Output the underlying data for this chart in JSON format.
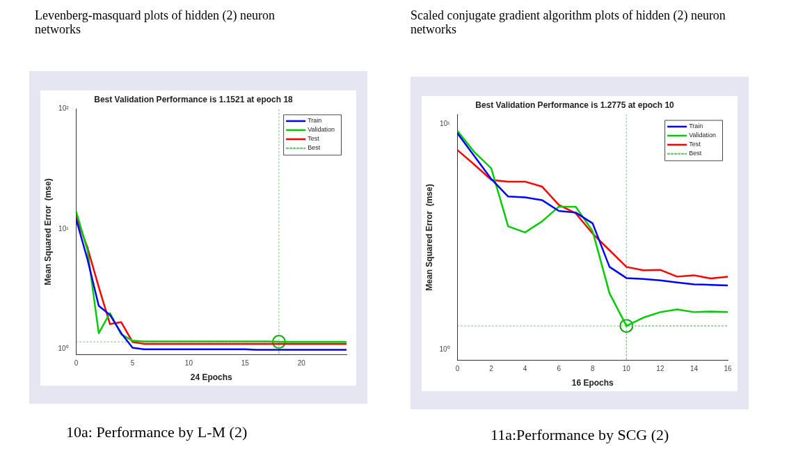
{
  "chart_data": [
    {
      "type": "line",
      "title": "Best Validation Performance is 1.1521 at epoch 18",
      "xlabel": "24 Epochs",
      "ylabel": "Mean Squared Error  (mse)",
      "annotations": [
        "Levenberg-masquard plots of  hidden (2)  neuron networks",
        "10a: Performance by L-M (2)"
      ],
      "x": [
        0,
        1,
        2,
        3,
        4,
        5,
        6,
        7,
        8,
        9,
        10,
        11,
        12,
        13,
        14,
        15,
        16,
        17,
        18,
        19,
        20,
        21,
        22,
        23,
        24
      ],
      "series": [
        {
          "name": "Train",
          "color": "#0000ff",
          "values": [
            12,
            5.6,
            2.3,
            1.93,
            1.36,
            1.03,
            1.0,
            1.0,
            1.0,
            1.0,
            1.0,
            1.0,
            1.0,
            1.0,
            1.0,
            1.0,
            0.99,
            0.99,
            0.99,
            0.99,
            0.99,
            0.99,
            0.99,
            0.99,
            0.99
          ]
        },
        {
          "name": "Validation",
          "color": "#00cc00",
          "values": [
            13.9,
            6.7,
            1.36,
            2.0,
            1.33,
            1.18,
            1.16,
            1.16,
            1.16,
            1.16,
            1.16,
            1.16,
            1.16,
            1.16,
            1.16,
            1.16,
            1.16,
            1.16,
            1.1521,
            1.15,
            1.15,
            1.15,
            1.15,
            1.15,
            1.15
          ]
        },
        {
          "name": "Test",
          "color": "#ff0000",
          "values": [
            12.6,
            7.0,
            3.3,
            1.62,
            1.68,
            1.15,
            1.11,
            1.11,
            1.11,
            1.11,
            1.11,
            1.11,
            1.11,
            1.11,
            1.11,
            1.11,
            1.11,
            1.11,
            1.11,
            1.11,
            1.11,
            1.11,
            1.11,
            1.11,
            1.11
          ]
        },
        {
          "name": "Best",
          "color": "#7fbf7f",
          "line_style": "dotted",
          "x": [
            0,
            18,
            18,
            18
          ],
          "values": [
            1.1521,
            1.1521,
            0.9,
            100
          ]
        },
        {
          "type": "scatter",
          "marker": "circle",
          "color": "#00aa00",
          "x": [
            18
          ],
          "values": [
            1.1521
          ]
        }
      ],
      "log": "y",
      "xlim": [
        0,
        24
      ],
      "xticks": [
        0,
        5,
        10,
        15,
        20
      ],
      "ylim": [
        0.9,
        100
      ],
      "yticks": [
        {
          "value": 1,
          "label": "10⁰"
        },
        {
          "value": 10,
          "label": "10¹"
        },
        {
          "value": 100,
          "label": "10²"
        }
      ],
      "legend": "top right"
    },
    {
      "type": "line",
      "title": "Best Validation Performance is 1.2775 at epoch 10",
      "xlabel": "16 Epochs",
      "ylabel": "Mean Squared Error  (mse)",
      "annotations": [
        "Scaled conjugate gradient algorithm plots of hidden (2) neuron networks",
        "11a:Performance by SCG (2)"
      ],
      "x": [
        0,
        1,
        2,
        3,
        4,
        5,
        6,
        7,
        8,
        9,
        10,
        11,
        12,
        13,
        14,
        15,
        16
      ],
      "series": [
        {
          "name": "Train",
          "color": "#0000ff",
          "values": [
            9.07,
            7.2,
            5.7,
            4.77,
            4.73,
            4.6,
            4.12,
            4.05,
            3.63,
            2.33,
            2.08,
            2.06,
            2.03,
            1.99,
            1.95,
            1.94,
            1.93
          ]
        },
        {
          "name": "Validation",
          "color": "#00cc00",
          "values": [
            9.3,
            7.5,
            6.35,
            3.52,
            3.31,
            3.7,
            4.3,
            4.3,
            3.35,
            1.78,
            1.2775,
            1.39,
            1.47,
            1.51,
            1.47,
            1.48,
            1.47
          ]
        },
        {
          "name": "Test",
          "color": "#ff0000",
          "values": [
            7.65,
            6.6,
            5.65,
            5.55,
            5.55,
            5.28,
            4.38,
            4.02,
            3.27,
            2.76,
            2.33,
            2.25,
            2.26,
            2.11,
            2.14,
            2.07,
            2.11
          ]
        },
        {
          "name": "Best",
          "color": "#7fbf7f",
          "line_style": "dotted",
          "x": [
            0,
            16,
            10,
            10,
            10
          ],
          "values": [
            1.2775,
            1.2775,
            1.2775,
            0.9,
            11
          ]
        },
        {
          "type": "scatter",
          "marker": "circle",
          "color": "#00aa00",
          "x": [
            10
          ],
          "values": [
            1.2775
          ]
        }
      ],
      "log": "y",
      "xlim": [
        0,
        16
      ],
      "xticks": [
        0,
        2,
        4,
        6,
        8,
        10,
        12,
        14,
        16
      ],
      "ylim": [
        0.9,
        11
      ],
      "yticks": [
        {
          "value": 1,
          "label": "10⁰"
        },
        {
          "value": 10,
          "label": "10¹"
        }
      ],
      "legend": "top right"
    }
  ]
}
